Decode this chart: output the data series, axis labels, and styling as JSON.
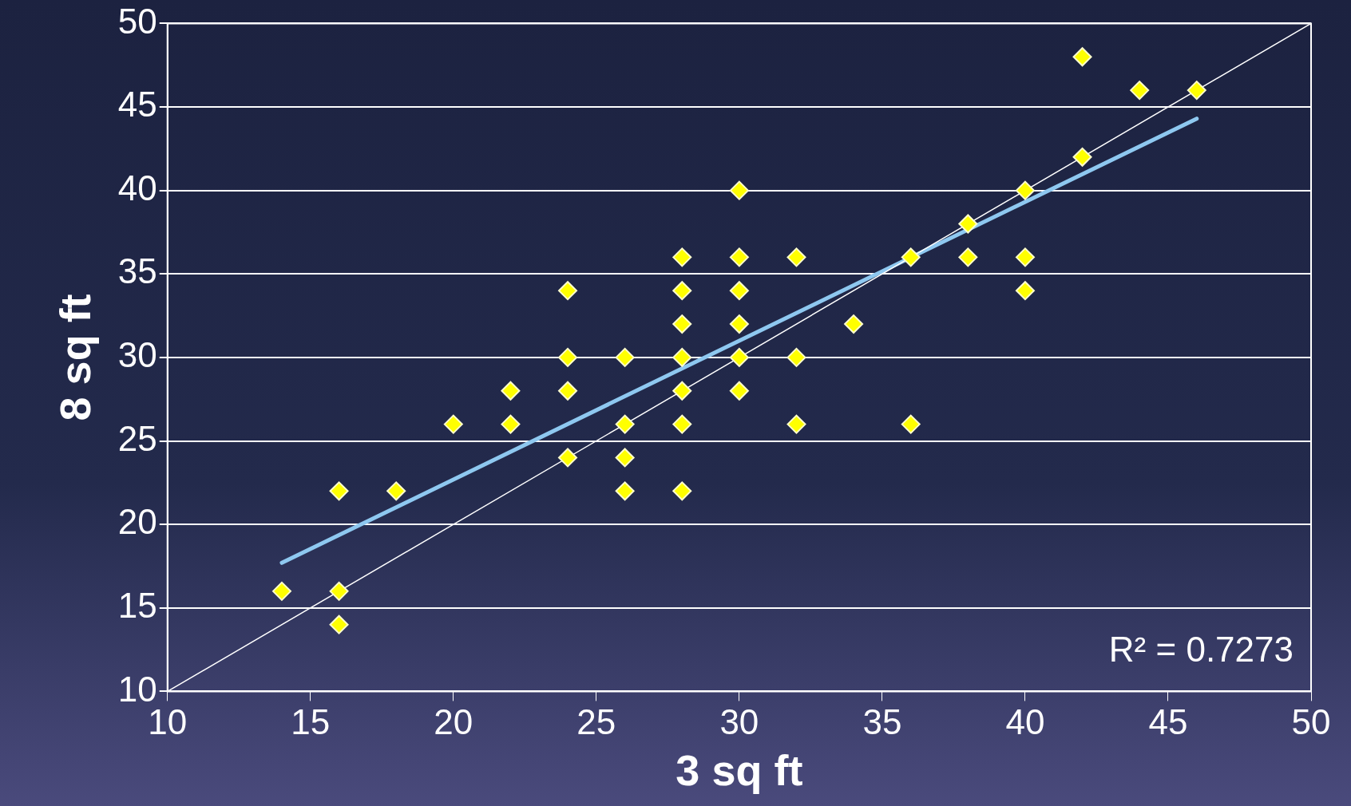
{
  "chart_data": {
    "type": "scatter",
    "xlabel": "3 sq ft",
    "ylabel": "8 sq ft",
    "xlim": [
      10,
      50
    ],
    "xticks": [
      10,
      15,
      20,
      25,
      30,
      35,
      40,
      45,
      50
    ],
    "ylim": [
      10,
      50
    ],
    "yticks": [
      10,
      15,
      20,
      25,
      30,
      35,
      40,
      45,
      50
    ],
    "grid": "y",
    "legend": false,
    "marker": "diamond",
    "annotations": [
      "R² = 0.7273"
    ],
    "series": [
      {
        "type": "line",
        "color": "#ffffff",
        "marker": "none",
        "x": [
          10,
          50
        ],
        "values": [
          10,
          50
        ]
      },
      {
        "color": "#ffff00",
        "x": [
          14,
          16,
          16,
          16,
          18,
          20,
          22,
          22,
          24,
          24,
          24,
          24,
          26,
          26,
          26,
          26,
          28,
          28,
          28,
          28,
          28,
          28,
          28,
          30,
          30,
          30,
          30,
          30,
          30,
          32,
          32,
          32,
          34,
          36,
          36,
          38,
          38,
          40,
          40,
          40,
          42,
          42,
          44,
          46
        ],
        "values": [
          16,
          22,
          16,
          14,
          22,
          26,
          28,
          26,
          34,
          30,
          28,
          24,
          30,
          26,
          24,
          22,
          36,
          34,
          32,
          30,
          28,
          26,
          22,
          40,
          36,
          34,
          32,
          30,
          28,
          36,
          30,
          26,
          32,
          36,
          26,
          38,
          36,
          40,
          36,
          34,
          48,
          42,
          46,
          46
        ]
      },
      {
        "type": "line",
        "color": "#8ec8f0",
        "marker": "none",
        "x": [
          14,
          46
        ],
        "values": [
          17.7,
          44.3
        ]
      }
    ]
  }
}
